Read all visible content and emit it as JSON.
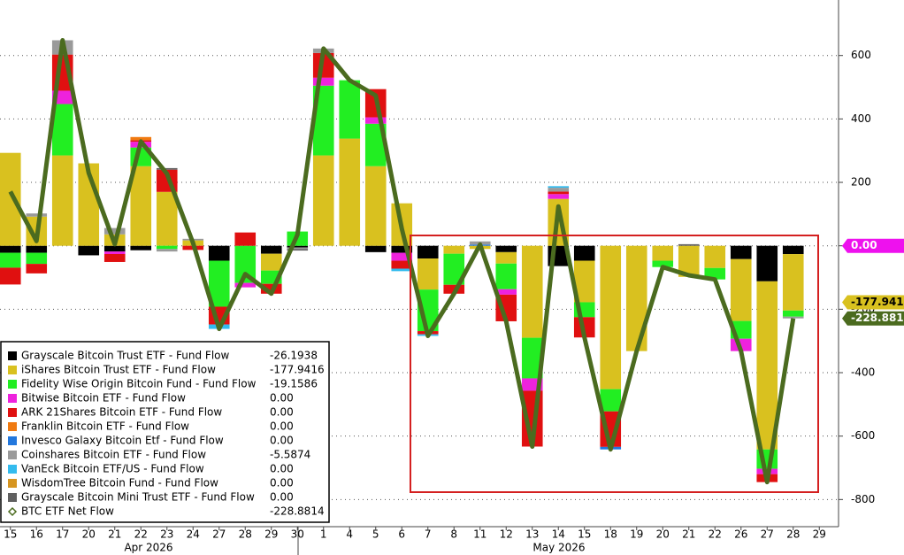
{
  "chart_data": {
    "type": "bar",
    "categories": [
      "15",
      "16",
      "17",
      "20",
      "21",
      "22",
      "23",
      "24",
      "27",
      "28",
      "29",
      "30",
      "1",
      "4",
      "5",
      "6",
      "7",
      "8",
      "11",
      "12",
      "13",
      "14",
      "15",
      "18",
      "19",
      "20",
      "21",
      "22",
      "26",
      "27",
      "28",
      "29"
    ],
    "months": [
      "Apr 2026",
      "May 2026"
    ],
    "ylim": [
      -880,
      775
    ],
    "yticks": [
      -800,
      -600,
      -400,
      -200,
      0,
      200,
      400,
      600
    ],
    "grid": true,
    "series": [
      {
        "name": "Grayscale Bitcoin Trust ETF - Fund Flow",
        "color": "#000000",
        "values": [
          -22,
          -22,
          0,
          -30,
          -18,
          -14,
          0,
          0,
          -47,
          0,
          -25,
          -5,
          0,
          0,
          -20,
          -22,
          -40,
          0,
          0,
          -20,
          0,
          -64,
          -47,
          0,
          0,
          0,
          0,
          0,
          -42,
          -112,
          -26.1938,
          null
        ]
      },
      {
        "name": "iShares Bitcoin Trust ETF - Fund Flow",
        "color": "#d9c11f",
        "values": [
          293,
          92,
          285,
          260,
          36,
          251,
          170,
          17,
          0,
          0,
          -53,
          0,
          285,
          338,
          251,
          134,
          -98,
          -25,
          -10,
          -36,
          -290,
          148,
          -131,
          -452,
          -332,
          -47,
          -98,
          -70,
          -195,
          -530,
          -177.9416,
          null
        ]
      },
      {
        "name": "Fidelity Wise Origin Bitcoin Fund - Fund Flow",
        "color": "#22ee22",
        "values": [
          -47,
          -35,
          162,
          0,
          0,
          59,
          -10,
          0,
          -145,
          -117,
          -42,
          45,
          220,
          184,
          134,
          0,
          -131,
          -98,
          0,
          -81,
          -128,
          0,
          -47,
          -70,
          0,
          -20,
          0,
          -36,
          -56,
          -61,
          -19.1586,
          null
        ]
      },
      {
        "name": "Bitwise Bitcoin ETF - Fund Flow",
        "color": "#ee22dd",
        "values": [
          0,
          0,
          42,
          0,
          -8,
          18,
          0,
          0,
          0,
          -14,
          0,
          0,
          25,
          0,
          20,
          -25,
          0,
          0,
          0,
          -17,
          -39,
          15,
          0,
          0,
          0,
          0,
          0,
          0,
          -39,
          -17,
          0,
          null
        ]
      },
      {
        "name": "ARK 21Shares Bitcoin ETF - Fund Flow",
        "color": "#e01010",
        "values": [
          -53,
          -30,
          114,
          0,
          -25,
          5,
          70,
          -13,
          -56,
          42,
          -31,
          0,
          78,
          0,
          89,
          -25,
          -10,
          -28,
          0,
          -84,
          -176,
          8,
          -64,
          -112,
          0,
          0,
          0,
          0,
          0,
          -25,
          0,
          null
        ]
      },
      {
        "name": "Franklin Bitcoin ETF - Fund Flow",
        "color": "#f07a10",
        "values": [
          0,
          0,
          0,
          0,
          0,
          10,
          0,
          0,
          0,
          0,
          0,
          0,
          0,
          0,
          0,
          0,
          0,
          0,
          0,
          0,
          0,
          0,
          0,
          0,
          0,
          0,
          0,
          0,
          0,
          0,
          0,
          null
        ]
      },
      {
        "name": "Invesco Galaxy Bitcoin Etf - Fund Flow",
        "color": "#2277dd",
        "values": [
          0,
          0,
          0,
          0,
          0,
          0,
          0,
          0,
          0,
          0,
          0,
          0,
          0,
          0,
          0,
          0,
          0,
          0,
          4,
          0,
          0,
          0,
          0,
          -8,
          0,
          0,
          0,
          0,
          0,
          0,
          0,
          null
        ]
      },
      {
        "name": "Coinshares Bitcoin ETF - Fund Flow",
        "color": "#9a9a9a",
        "values": [
          0,
          10,
          45,
          0,
          20,
          0,
          -8,
          5,
          0,
          0,
          0,
          -5,
          14,
          0,
          0,
          0,
          0,
          0,
          10,
          0,
          0,
          12,
          0,
          0,
          0,
          0,
          0,
          0,
          0,
          0,
          -5.5874,
          null
        ]
      },
      {
        "name": "VanEck Bitcoin ETF/US - Fund Flow",
        "color": "#33bbee",
        "values": [
          0,
          0,
          0,
          0,
          0,
          0,
          0,
          0,
          -14,
          0,
          0,
          0,
          0,
          0,
          0,
          -8,
          -5,
          0,
          0,
          0,
          0,
          5,
          0,
          0,
          0,
          0,
          0,
          0,
          0,
          0,
          0,
          null
        ]
      },
      {
        "name": "WisdomTree Bitcoin Fund - Fund Flow",
        "color": "#d69520",
        "values": [
          0,
          0,
          0,
          0,
          0,
          0,
          0,
          0,
          0,
          0,
          0,
          0,
          0,
          0,
          0,
          0,
          0,
          0,
          0,
          0,
          0,
          0,
          0,
          0,
          0,
          0,
          0,
          0,
          0,
          0,
          0,
          null
        ]
      },
      {
        "name": "Grayscale Bitcoin Mini Trust ETF - Fund Flow",
        "color": "#606060",
        "values": [
          0,
          0,
          0,
          0,
          0,
          0,
          5,
          0,
          0,
          0,
          0,
          -5,
          0,
          0,
          0,
          0,
          0,
          0,
          0,
          0,
          0,
          0,
          0,
          0,
          0,
          0,
          5,
          0,
          0,
          0,
          0,
          null
        ]
      }
    ],
    "line_series": {
      "name": "BTC ETF Net Flow",
      "color": "#4b6b1f",
      "values": [
        171,
        15,
        648,
        230,
        5,
        329,
        227,
        9,
        -262,
        -89,
        -151,
        35,
        622,
        522,
        474,
        54,
        -284,
        -151,
        4,
        -238,
        -633,
        124,
        -289,
        -642,
        -332,
        -67,
        -93,
        -106,
        -332,
        -745,
        -228.8814,
        null
      ]
    },
    "legend_values": [
      "-26.1938",
      "-177.9416",
      "-19.1586",
      "0.00",
      "0.00",
      "0.00",
      "0.00",
      "-5.5874",
      "0.00",
      "0.00",
      "0.00",
      "-228.8814"
    ],
    "axis_tags": [
      {
        "label": "0.00",
        "value": 0,
        "color": "#ee11ee"
      },
      {
        "label": "-177.9416",
        "value": -177.9416,
        "color": "#d9c11f"
      },
      {
        "label": "-228.8814",
        "value": -228.8814,
        "color": "#4b6b1f"
      }
    ]
  }
}
